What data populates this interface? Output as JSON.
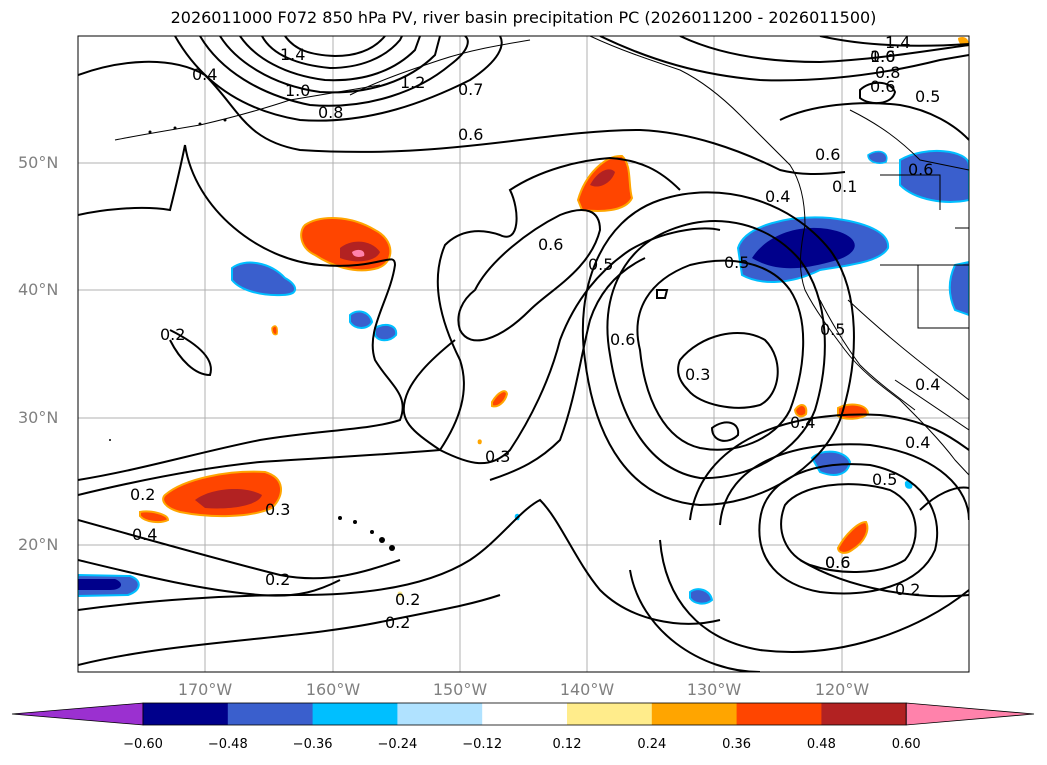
{
  "title": "2026011000 F072 850 hPa PV, river basin precipitation PC (2026011200 - 2026011500)",
  "map": {
    "lat_labels": [
      "50°N",
      "40°N",
      "30°N",
      "20°N"
    ],
    "lon_labels": [
      "170°W",
      "160°W",
      "150°W",
      "140°W",
      "130°W",
      "120°W"
    ],
    "contour_labels": [
      "1.4",
      "1.2",
      "1.0",
      "0.8",
      "0.6",
      "0.5",
      "0.4",
      "0.7",
      "0.6",
      "1.4",
      "1.0",
      "0.8",
      "0.6",
      "0.5",
      "0.6",
      "0.4",
      "0.6",
      "0.5",
      "0.5",
      "0.6",
      "0.6",
      "0.4",
      "0.3",
      "0.3",
      "0.2",
      "0.3",
      "0.2",
      "0.4",
      "0.2",
      "0.2",
      "0.4",
      "0.5",
      "0.6",
      "0.2",
      "0.4",
      "0.2",
      "0.6",
      "0.1"
    ]
  },
  "colorbar": {
    "ticks": [
      "−0.60",
      "−0.48",
      "−0.36",
      "−0.24",
      "−0.12",
      "0.12",
      "0.24",
      "0.36",
      "0.48",
      "0.60"
    ],
    "colors": [
      "#9b30d0",
      "#00008b",
      "#3a5fcd",
      "#00bfff",
      "#b0e2ff",
      "#ffffff",
      "#ffec8b",
      "#ffa500",
      "#ff4500",
      "#b22222",
      "#ff82ab"
    ]
  }
}
